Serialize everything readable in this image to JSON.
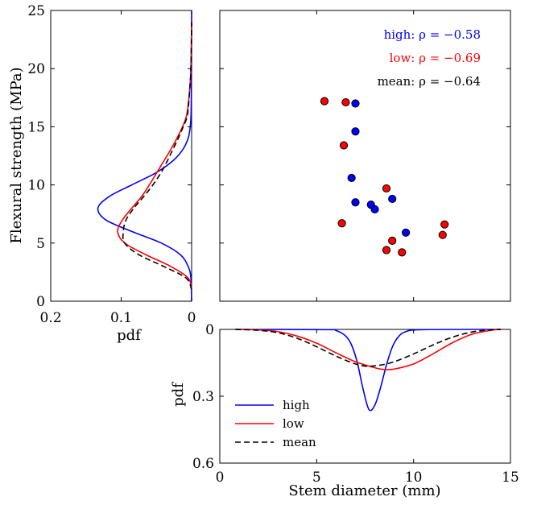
{
  "chart_data": [
    {
      "id": "left",
      "type": "line",
      "xlabel": "pdf",
      "ylabel": "Flexural strength (MPa)",
      "xlim": [
        0.2,
        0
      ],
      "ylim": [
        0,
        25
      ],
      "xticks": [
        "0.2",
        "0.1",
        "0"
      ],
      "yticks": [
        "0",
        "5",
        "10",
        "15",
        "20",
        "25"
      ],
      "series": [
        {
          "name": "high",
          "color": "#0000ff",
          "dash": "solid",
          "x": [
            0,
            0.001,
            0.005,
            0.016,
            0.043,
            0.085,
            0.122,
            0.133,
            0.117,
            0.085,
            0.052,
            0.028,
            0.013,
            0.005,
            0.002,
            0.0005,
            0
          ],
          "y": [
            0,
            2,
            3,
            4,
            5,
            6,
            7,
            8,
            9,
            10,
            11,
            12,
            13,
            14,
            15,
            17,
            25
          ]
        },
        {
          "name": "low",
          "color": "#ff0000",
          "dash": "solid",
          "x": [
            0,
            0.005,
            0.03,
            0.065,
            0.095,
            0.105,
            0.098,
            0.085,
            0.071,
            0.06,
            0.05,
            0.04,
            0.03,
            0.021,
            0.013,
            0.007,
            0.003,
            0.001,
            0
          ],
          "y": [
            1,
            2,
            3,
            4,
            5,
            6,
            7,
            8,
            9,
            10,
            11,
            12,
            13,
            14,
            15,
            16,
            18,
            20,
            24
          ]
        },
        {
          "name": "mean",
          "color": "#000000",
          "dash": "dashed",
          "x": [
            0,
            0.008,
            0.04,
            0.075,
            0.095,
            0.097,
            0.093,
            0.082,
            0.068,
            0.055,
            0.044,
            0.035,
            0.027,
            0.019,
            0.012,
            0.006,
            0.003,
            0.001,
            0
          ],
          "y": [
            1,
            2,
            3,
            4,
            5,
            6,
            7,
            8,
            9,
            10,
            11,
            12,
            13,
            14,
            15,
            16,
            18,
            20,
            24
          ]
        }
      ]
    },
    {
      "id": "scatter",
      "type": "scatter",
      "xlim": [
        0,
        15
      ],
      "ylim": [
        0,
        25
      ],
      "annotations": [
        {
          "text": "high: ρ = −0.58",
          "color": "#0000ff"
        },
        {
          "text": "low: ρ = −0.69",
          "color": "#ff0000"
        },
        {
          "text": "mean: ρ = −0.64",
          "color": "#000000"
        }
      ],
      "series": [
        {
          "name": "high",
          "color": "#0000ff",
          "x": [
            7.0,
            7.0,
            6.8,
            7.0,
            7.8,
            8.0,
            8.9,
            9.6
          ],
          "y": [
            17.0,
            14.6,
            10.6,
            8.5,
            8.3,
            7.9,
            8.8,
            5.9
          ]
        },
        {
          "name": "low",
          "color": "#ff0000",
          "x": [
            5.4,
            6.5,
            6.4,
            6.3,
            8.6,
            11.6,
            11.5,
            8.9,
            8.6,
            9.4
          ],
          "y": [
            17.2,
            17.1,
            13.4,
            6.7,
            9.7,
            6.6,
            5.7,
            5.2,
            4.4,
            4.2
          ]
        }
      ]
    },
    {
      "id": "bottom",
      "type": "line",
      "xlabel": "Stem diameter (mm)",
      "ylabel": "pdf",
      "xlim": [
        0,
        15
      ],
      "ylim": [
        0.6,
        0
      ],
      "xticks": [
        "0",
        "5",
        "10",
        "15"
      ],
      "yticks": [
        "0",
        "0.3",
        "0.6"
      ],
      "series": [
        {
          "name": "high",
          "color": "#0000ff",
          "dash": "solid",
          "x": [
            0.8,
            5.5,
            6.0,
            6.5,
            6.8,
            7.1,
            7.4,
            7.7,
            8.0,
            8.3,
            8.6,
            8.9,
            9.2,
            9.6,
            10.5,
            14.5
          ],
          "y": [
            0,
            0.001,
            0.005,
            0.03,
            0.07,
            0.15,
            0.27,
            0.36,
            0.34,
            0.26,
            0.16,
            0.08,
            0.035,
            0.01,
            0.001,
            0
          ]
        },
        {
          "name": "low",
          "color": "#ff0000",
          "dash": "solid",
          "x": [
            0.8,
            2.0,
            3.0,
            4.0,
            5.0,
            6.0,
            7.0,
            8.0,
            8.5,
            9.0,
            10.0,
            11.0,
            12.0,
            13.0,
            14.0,
            14.5
          ],
          "y": [
            0,
            0.002,
            0.01,
            0.03,
            0.062,
            0.105,
            0.145,
            0.172,
            0.18,
            0.178,
            0.155,
            0.11,
            0.06,
            0.022,
            0.004,
            0
          ]
        },
        {
          "name": "mean",
          "color": "#000000",
          "dash": "dashed",
          "x": [
            0.8,
            2.0,
            3.0,
            4.0,
            5.0,
            6.0,
            7.0,
            7.6,
            8.3,
            9.0,
            10.0,
            11.0,
            12.0,
            13.0,
            14.0,
            14.5
          ],
          "y": [
            0,
            0.004,
            0.015,
            0.04,
            0.078,
            0.12,
            0.155,
            0.165,
            0.16,
            0.145,
            0.11,
            0.07,
            0.035,
            0.012,
            0.002,
            0
          ]
        }
      ],
      "legend": {
        "position": "bottom-left",
        "entries": [
          "high",
          "low",
          "mean"
        ]
      }
    }
  ]
}
